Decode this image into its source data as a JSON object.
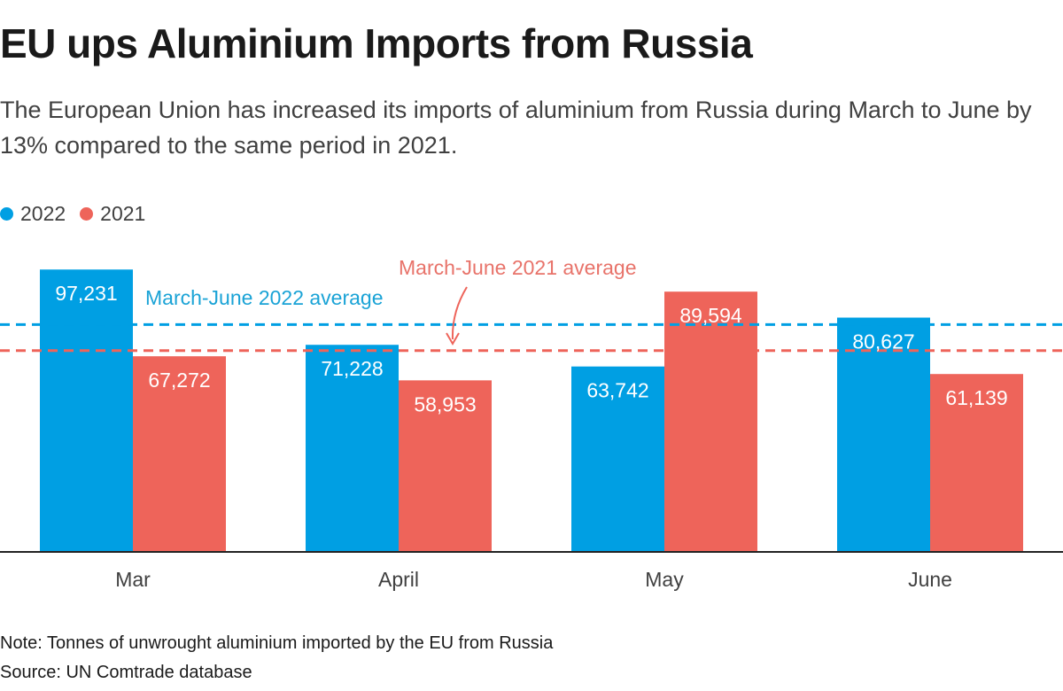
{
  "header": {
    "title": "EU ups Aluminium Imports from Russia",
    "subtitle": "The European Union has increased its imports of aluminium from Russia during March to June by 13% compared to the same period in 2021."
  },
  "legend": [
    {
      "label": "2022",
      "color": "#009fe3"
    },
    {
      "label": "2021",
      "color": "#ee645a"
    }
  ],
  "chart_data": {
    "type": "bar",
    "title": "EU ups Aluminium Imports from Russia",
    "xlabel": "",
    "ylabel": "Tonnes of unwrought aluminium",
    "categories": [
      "Mar",
      "April",
      "May",
      "June"
    ],
    "series": [
      {
        "name": "2022",
        "color": "#009fe3",
        "values": [
          97231,
          71228,
          63742,
          80627
        ],
        "labels": [
          "97,231",
          "71,228",
          "63,742",
          "80,627"
        ]
      },
      {
        "name": "2021",
        "color": "#ee645a",
        "values": [
          67272,
          58953,
          89594,
          61139
        ],
        "labels": [
          "67,272",
          "58,953",
          "89,594",
          "61,139"
        ]
      }
    ],
    "ylim": [
      0,
      100000
    ],
    "grid": false,
    "legend_position": "top-left",
    "reference_lines": [
      {
        "name": "March-June 2022 average",
        "value": 78207,
        "color": "#009fe3",
        "label_color": "#1aa3d6"
      },
      {
        "name": "March-June 2021 average",
        "value": 69240,
        "color": "#ee645a",
        "label_color": "#e8736a"
      }
    ]
  },
  "annotations": {
    "avg_2022_label": "March-June 2022 average",
    "avg_2021_label": "March-June 2021 average"
  },
  "footer": {
    "note": "Note: Tonnes of unwrought aluminium imported by the EU from Russia",
    "source": "Source: UN Comtrade database"
  }
}
